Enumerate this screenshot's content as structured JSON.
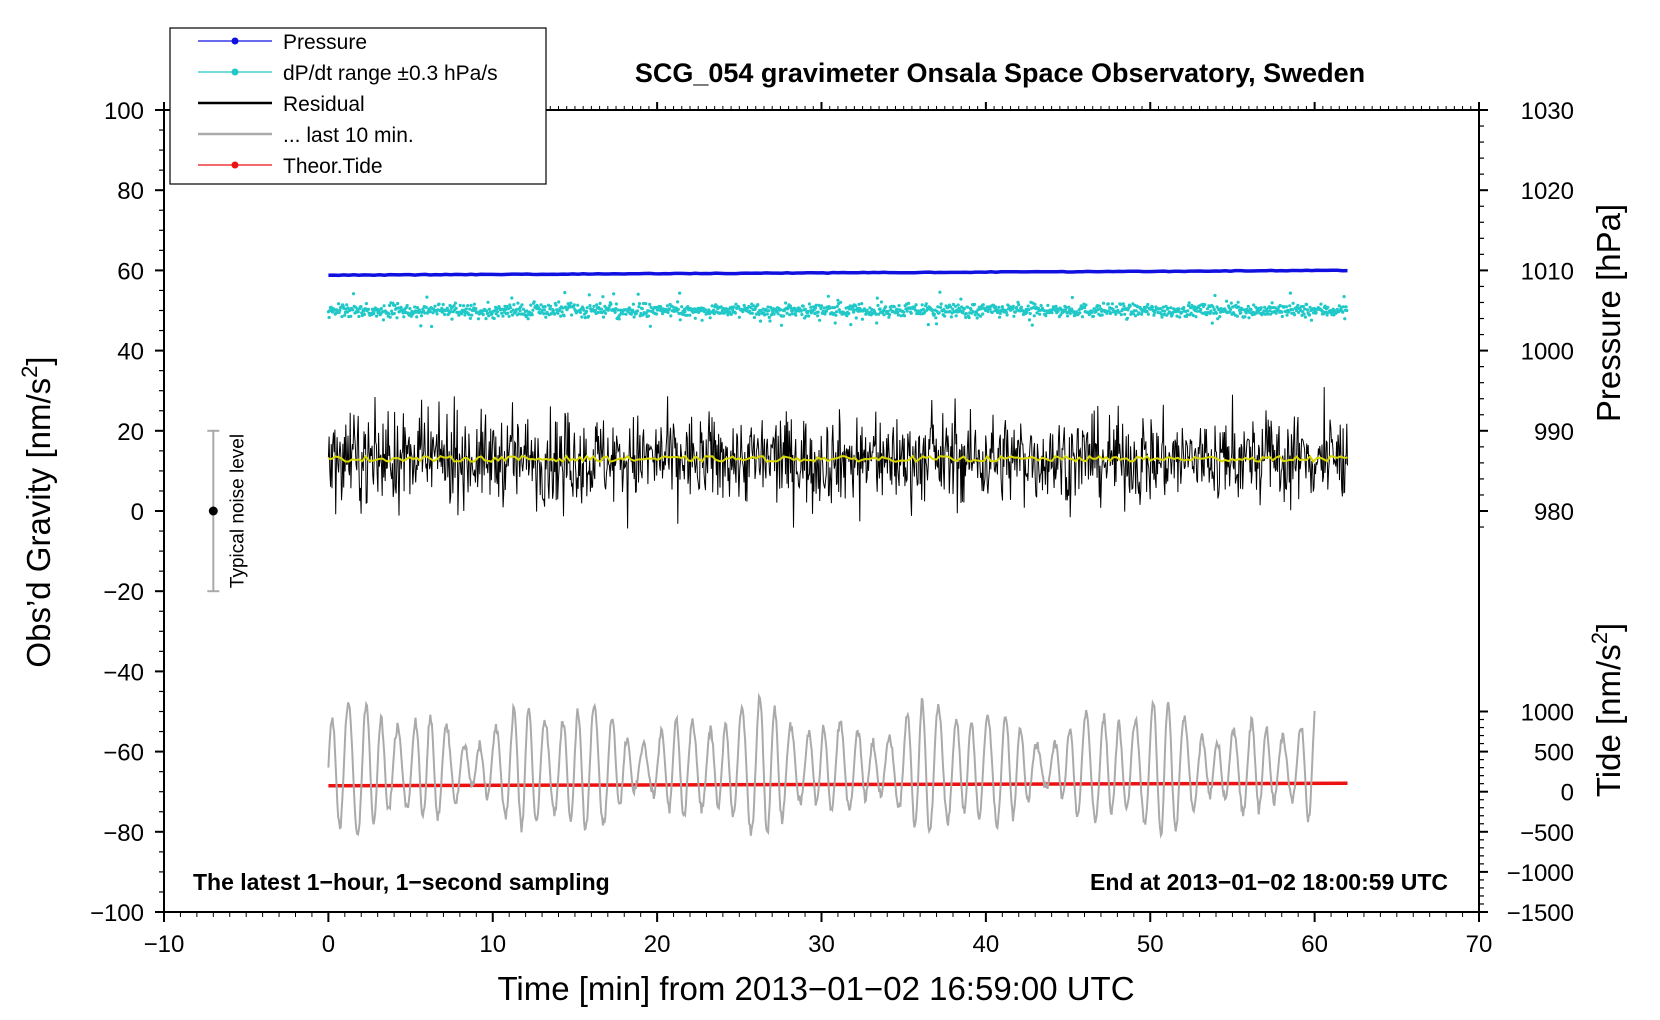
{
  "chart_data": {
    "type": "line",
    "title": "SCG_054 gravimeter Onsala Space Observatory, Sweden",
    "xlabel": "Time [min] from 2013−01−02 16:59:00 UTC",
    "ylabel": "Obs’d Gravity [nm/s²]",
    "ylabel_left_text": "Obs’d Gravity [nm/s",
    "ylabel_left_sup": "2",
    "ylabel_left_close": "]",
    "y2label_pressure": "Pressure [hPa]",
    "y2label_tide_text": "Tide [nm/s",
    "y2label_tide_sup": "2",
    "y2label_tide_close": "]",
    "xlim": [
      -10,
      70
    ],
    "ylim": [
      -100,
      100
    ],
    "xticks": [
      -10,
      0,
      10,
      20,
      30,
      40,
      50,
      60,
      70
    ],
    "xtick_labels": [
      "−10",
      "0",
      "10",
      "20",
      "30",
      "40",
      "50",
      "60",
      "70"
    ],
    "yticks": [
      100,
      80,
      60,
      40,
      20,
      0,
      -20,
      -40,
      -60,
      -80,
      -100
    ],
    "ytick_labels": [
      "100",
      "80",
      "60",
      "40",
      "20",
      "0",
      "−20",
      "−40",
      "−60",
      "−80",
      "−100"
    ],
    "pressure_axis": {
      "ticks": [
        1030,
        1020,
        1010,
        1000,
        990,
        980
      ],
      "tick_labels": [
        "1030",
        "1020",
        "1010",
        "1000",
        "990",
        "980"
      ],
      "ref_value": 1030,
      "ref_gravity": 100,
      "gravity_per_hPa": 2
    },
    "tide_axis": {
      "ticks": [
        1000,
        500,
        0,
        -500,
        -1000,
        -1500
      ],
      "tick_labels": [
        "1000",
        "500",
        "0",
        "−500",
        "−1000",
        "−1500"
      ],
      "ref_value": -1500,
      "ref_gravity": -100,
      "gravity_per_unit": 0.02
    },
    "series": [
      {
        "name": "Pressure",
        "kind": "line",
        "color": "#1010e0",
        "x_range": [
          0,
          62
        ],
        "pressure_hPa_start": 1009.4,
        "pressure_hPa_end": 1010.0
      },
      {
        "name": "dP/dt range ±0.3 hPa/s",
        "kind": "scatter",
        "color": "#20c8c8",
        "x_range": [
          0,
          62
        ],
        "center": 50,
        "typical_spread": 1.2,
        "max_spread": 8
      },
      {
        "name": "Residual",
        "kind": "noisy-line",
        "color": "#000000",
        "x_range": [
          0,
          62
        ],
        "center": 13,
        "typical_amplitude": 10,
        "min": -9,
        "max": 31
      },
      {
        "name": "Residual smoothed",
        "kind": "line",
        "color": "#d8d800",
        "x_range": [
          0,
          62
        ],
        "value": 13
      },
      {
        "name": "... last 10 min.",
        "kind": "oscillation",
        "color": "#aaaaaa",
        "x_range": [
          0,
          60
        ],
        "center": -64,
        "min": -82,
        "max": -44
      },
      {
        "name": "Theor.Tide",
        "kind": "line",
        "color": "#ee1111",
        "x_range": [
          0,
          62
        ],
        "tide_start": 75,
        "tide_end": 105
      }
    ],
    "legend": {
      "placement": "top-left",
      "entries": [
        {
          "label": "Pressure",
          "color": "#1010e0",
          "style": "line-marker"
        },
        {
          "label": "dP/dt range ±0.3 hPa/s",
          "color": "#20c8c8",
          "style": "line-marker"
        },
        {
          "label": "Residual",
          "color": "#000000",
          "style": "line"
        },
        {
          "label": "... last 10 min.",
          "color": "#aaaaaa",
          "style": "line"
        },
        {
          "label": "Theor.Tide",
          "color": "#ee1111",
          "style": "line-marker"
        }
      ]
    },
    "noise_bar": {
      "label": "Typical noise level",
      "x": -7,
      "center": 0,
      "half_range": 20
    },
    "annotations": {
      "bottom_left": "The latest 1−hour, 1−second sampling",
      "bottom_right": "End at 2013−01−02 18:00:59 UTC"
    }
  }
}
